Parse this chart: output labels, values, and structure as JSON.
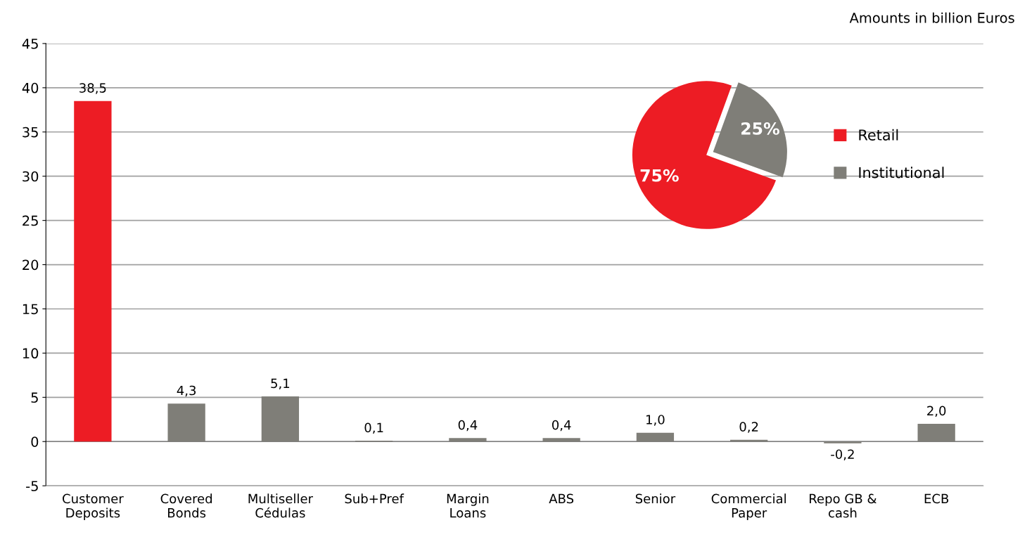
{
  "chart_data": [
    {
      "type": "bar",
      "categories": [
        "Customer\nDeposits",
        "Covered\nBonds",
        "Multiseller\nCédulas",
        "Sub+Pref",
        "Margin\nLoans",
        "ABS",
        "Senior",
        "Commercial\nPaper",
        "Repo GB &\ncash",
        "ECB"
      ],
      "values": [
        38.5,
        4.3,
        5.1,
        0.1,
        0.4,
        0.4,
        1.0,
        0.2,
        -0.2,
        2.0
      ],
      "colors": [
        "#ed1c24",
        "#7f7e78",
        "#7f7e78",
        "#7f7e78",
        "#7f7e78",
        "#7f7e78",
        "#7f7e78",
        "#7f7e78",
        "#7f7e78",
        "#7f7e78"
      ],
      "value_labels": [
        "38,5",
        "4,3",
        "5,1",
        "0,1",
        "0,4",
        "0,4",
        "1,0",
        "0,2",
        "-0,2",
        "2,0"
      ],
      "ylim": [
        -5,
        45
      ],
      "yticks": [
        -5,
        0,
        5,
        10,
        15,
        20,
        25,
        30,
        35,
        40,
        45
      ],
      "grid": "y",
      "annotations": [
        "Amounts in billion Euros"
      ]
    },
    {
      "type": "pie",
      "categories": [
        "Retail",
        "Institutional"
      ],
      "values": [
        75,
        25
      ],
      "colors": [
        "#ed1c24",
        "#7f7e78"
      ],
      "value_labels": [
        "75%",
        "25%"
      ],
      "legend": "right"
    }
  ]
}
